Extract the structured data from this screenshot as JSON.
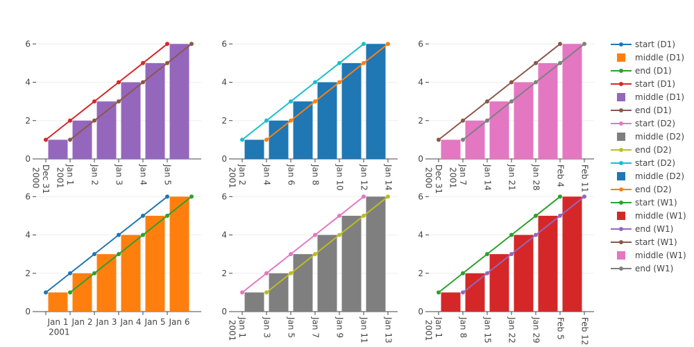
{
  "chart_data": [
    {
      "type": "bar",
      "period_days": 1,
      "tick_label_mode": "period",
      "xtick_angle": 0,
      "x": [
        "2001-01-01",
        "2001-01-02",
        "2001-01-03",
        "2001-01-04",
        "2001-01-05",
        "2001-01-06"
      ],
      "xlim": [
        "2000-12-31T14:24",
        "2001-01-07T09:36"
      ],
      "xticks": [
        {
          "value": "2001-01-01",
          "label": "Jan 1 2001"
        },
        {
          "value": "2001-01-02",
          "label": "Jan 2"
        },
        {
          "value": "2001-01-03",
          "label": "Jan 3"
        },
        {
          "value": "2001-01-04",
          "label": "Jan 4"
        },
        {
          "value": "2001-01-05",
          "label": "Jan 5"
        },
        {
          "value": "2001-01-06",
          "label": "Jan 6"
        }
      ],
      "ylim": [
        0,
        6.3
      ],
      "yticks": [
        0,
        2,
        4,
        6
      ],
      "grid": true,
      "series": [
        {
          "name": "start (D1)",
          "type": "line",
          "alignment": "start",
          "color": "#1f77b4",
          "values": [
            1,
            2,
            3,
            4,
            5,
            6
          ]
        },
        {
          "name": "middle (D1)",
          "type": "bar",
          "alignment": "middle",
          "color": "#ff7f0e",
          "values": [
            1,
            2,
            3,
            4,
            5,
            6
          ]
        },
        {
          "name": "end (D1)",
          "type": "line",
          "alignment": "end",
          "color": "#2ca02c",
          "values": [
            1,
            2,
            3,
            4,
            5,
            6
          ]
        }
      ]
    },
    {
      "type": "bar",
      "period_days": 1,
      "tick_label_mode": "instant",
      "xtick_angle": 90,
      "x": [
        "2000-12-31",
        "2001-01-01",
        "2001-01-02",
        "2001-01-03",
        "2001-01-04",
        "2001-01-05"
      ],
      "xlim": [
        "2000-12-30T14:24",
        "2001-01-06T09:36"
      ],
      "xticks": [
        {
          "value": "2000-12-31",
          "label": "Dec 31 2000"
        },
        {
          "value": "2001-01-01",
          "label": "Jan 1 2001"
        },
        {
          "value": "2001-01-02",
          "label": "Jan 2"
        },
        {
          "value": "2001-01-03",
          "label": "Jan 3"
        },
        {
          "value": "2001-01-04",
          "label": "Jan 4"
        },
        {
          "value": "2001-01-05",
          "label": "Jan 5"
        }
      ],
      "ylim": [
        0,
        6.3
      ],
      "yticks": [
        0,
        2,
        4,
        6
      ],
      "grid": true,
      "series": [
        {
          "name": "start (D1)",
          "type": "line",
          "alignment": "start",
          "color": "#d62728",
          "values": [
            1,
            2,
            3,
            4,
            5,
            6
          ]
        },
        {
          "name": "middle (D1)",
          "type": "bar",
          "alignment": "middle",
          "color": "#9467bd",
          "values": [
            1,
            2,
            3,
            4,
            5,
            6
          ]
        },
        {
          "name": "end (D1)",
          "type": "line",
          "alignment": "end",
          "color": "#8c564b",
          "values": [
            1,
            2,
            3,
            4,
            5,
            6
          ]
        }
      ]
    },
    {
      "type": "bar",
      "period_days": 2,
      "tick_label_mode": "instant",
      "xtick_angle": 90,
      "x": [
        "2001-01-01",
        "2001-01-03",
        "2001-01-05",
        "2001-01-07",
        "2001-01-09",
        "2001-01-11"
      ],
      "xlim": [
        "2000-12-31T04:48",
        "2001-01-13T19:12"
      ],
      "xticks": [
        {
          "value": "2001-01-01",
          "label": "Jan 1 2001"
        },
        {
          "value": "2001-01-03",
          "label": "Jan 3"
        },
        {
          "value": "2001-01-05",
          "label": "Jan 5"
        },
        {
          "value": "2001-01-07",
          "label": "Jan 7"
        },
        {
          "value": "2001-01-09",
          "label": "Jan 9"
        },
        {
          "value": "2001-01-11",
          "label": "Jan 11"
        },
        {
          "value": "2001-01-13",
          "label": "Jan 13"
        }
      ],
      "ylim": [
        0,
        6.3
      ],
      "yticks": [
        0,
        2,
        4,
        6
      ],
      "grid": true,
      "series": [
        {
          "name": "start (D2)",
          "type": "line",
          "alignment": "start",
          "color": "#e377c2",
          "values": [
            1,
            2,
            3,
            4,
            5,
            6
          ]
        },
        {
          "name": "middle (D2)",
          "type": "bar",
          "alignment": "middle",
          "color": "#7f7f7f",
          "values": [
            1,
            2,
            3,
            4,
            5,
            6
          ]
        },
        {
          "name": "end (D2)",
          "type": "line",
          "alignment": "end",
          "color": "#bcbd22",
          "values": [
            1,
            2,
            3,
            4,
            5,
            6
          ]
        }
      ]
    },
    {
      "type": "bar",
      "period_days": 2,
      "tick_label_mode": "instant",
      "xtick_angle": 90,
      "x": [
        "2001-01-02",
        "2001-01-04",
        "2001-01-06",
        "2001-01-08",
        "2001-01-10",
        "2001-01-12"
      ],
      "xlim": [
        "2001-01-01T04:48",
        "2001-01-14T19:12"
      ],
      "xticks": [
        {
          "value": "2001-01-02",
          "label": "Jan 2 2001"
        },
        {
          "value": "2001-01-04",
          "label": "Jan 4"
        },
        {
          "value": "2001-01-06",
          "label": "Jan 6"
        },
        {
          "value": "2001-01-08",
          "label": "Jan 8"
        },
        {
          "value": "2001-01-10",
          "label": "Jan 10"
        },
        {
          "value": "2001-01-12",
          "label": "Jan 12"
        },
        {
          "value": "2001-01-14",
          "label": "Jan 14"
        }
      ],
      "ylim": [
        0,
        6.3
      ],
      "yticks": [
        0,
        2,
        4,
        6
      ],
      "grid": true,
      "series": [
        {
          "name": "start (D2)",
          "type": "line",
          "alignment": "start",
          "color": "#17becf",
          "values": [
            1,
            2,
            3,
            4,
            5,
            6
          ]
        },
        {
          "name": "middle (D2)",
          "type": "bar",
          "alignment": "middle",
          "color": "#1f77b4",
          "values": [
            1,
            2,
            3,
            4,
            5,
            6
          ]
        },
        {
          "name": "end (D2)",
          "type": "line",
          "alignment": "end",
          "color": "#ff7f0e",
          "values": [
            1,
            2,
            3,
            4,
            5,
            6
          ]
        }
      ]
    },
    {
      "type": "bar",
      "period_days": 7,
      "tick_label_mode": "instant",
      "xtick_angle": 90,
      "x": [
        "2001-01-01",
        "2001-01-08",
        "2001-01-15",
        "2001-01-22",
        "2001-01-29",
        "2001-02-05"
      ],
      "xlim": [
        "2000-12-29T04:48",
        "2001-02-14T19:12"
      ],
      "xticks": [
        {
          "value": "2001-01-01",
          "label": "Jan 1 2001"
        },
        {
          "value": "2001-01-08",
          "label": "Jan 8"
        },
        {
          "value": "2001-01-15",
          "label": "Jan 15"
        },
        {
          "value": "2001-01-22",
          "label": "Jan 22"
        },
        {
          "value": "2001-01-29",
          "label": "Jan 29"
        },
        {
          "value": "2001-02-05",
          "label": "Feb 5"
        },
        {
          "value": "2001-02-12",
          "label": "Feb 12"
        }
      ],
      "ylim": [
        0,
        6.3
      ],
      "yticks": [
        0,
        2,
        4,
        6
      ],
      "grid": true,
      "series": [
        {
          "name": "start (W1)",
          "type": "line",
          "alignment": "start",
          "color": "#2ca02c",
          "values": [
            1,
            2,
            3,
            4,
            5,
            6
          ]
        },
        {
          "name": "middle (W1)",
          "type": "bar",
          "alignment": "middle",
          "color": "#d62728",
          "values": [
            1,
            2,
            3,
            4,
            5,
            6
          ]
        },
        {
          "name": "end (W1)",
          "type": "line",
          "alignment": "end",
          "color": "#9467bd",
          "values": [
            1,
            2,
            3,
            4,
            5,
            6
          ]
        }
      ]
    },
    {
      "type": "bar",
      "period_days": 7,
      "tick_label_mode": "instant",
      "xtick_angle": 90,
      "x": [
        "2000-12-31",
        "2001-01-07",
        "2001-01-14",
        "2001-01-21",
        "2001-01-28",
        "2001-02-04"
      ],
      "xlim": [
        "2000-12-28T04:48",
        "2001-02-13T19:12"
      ],
      "xticks": [
        {
          "value": "2000-12-31",
          "label": "Dec 31 2000"
        },
        {
          "value": "2001-01-07",
          "label": "Jan 7 2001"
        },
        {
          "value": "2001-01-14",
          "label": "Jan 14"
        },
        {
          "value": "2001-01-21",
          "label": "Jan 21"
        },
        {
          "value": "2001-01-28",
          "label": "Jan 28"
        },
        {
          "value": "2001-02-04",
          "label": "Feb 4"
        },
        {
          "value": "2001-02-11",
          "label": "Feb 11"
        }
      ],
      "ylim": [
        0,
        6.3
      ],
      "yticks": [
        0,
        2,
        4,
        6
      ],
      "grid": true,
      "series": [
        {
          "name": "start (W1)",
          "type": "line",
          "alignment": "start",
          "color": "#8c564b",
          "values": [
            1,
            2,
            3,
            4,
            5,
            6
          ]
        },
        {
          "name": "middle (W1)",
          "type": "bar",
          "alignment": "middle",
          "color": "#e377c2",
          "values": [
            1,
            2,
            3,
            4,
            5,
            6
          ]
        },
        {
          "name": "end (W1)",
          "type": "line",
          "alignment": "end",
          "color": "#7f7f7f",
          "values": [
            1,
            2,
            3,
            4,
            5,
            6
          ]
        }
      ]
    }
  ]
}
